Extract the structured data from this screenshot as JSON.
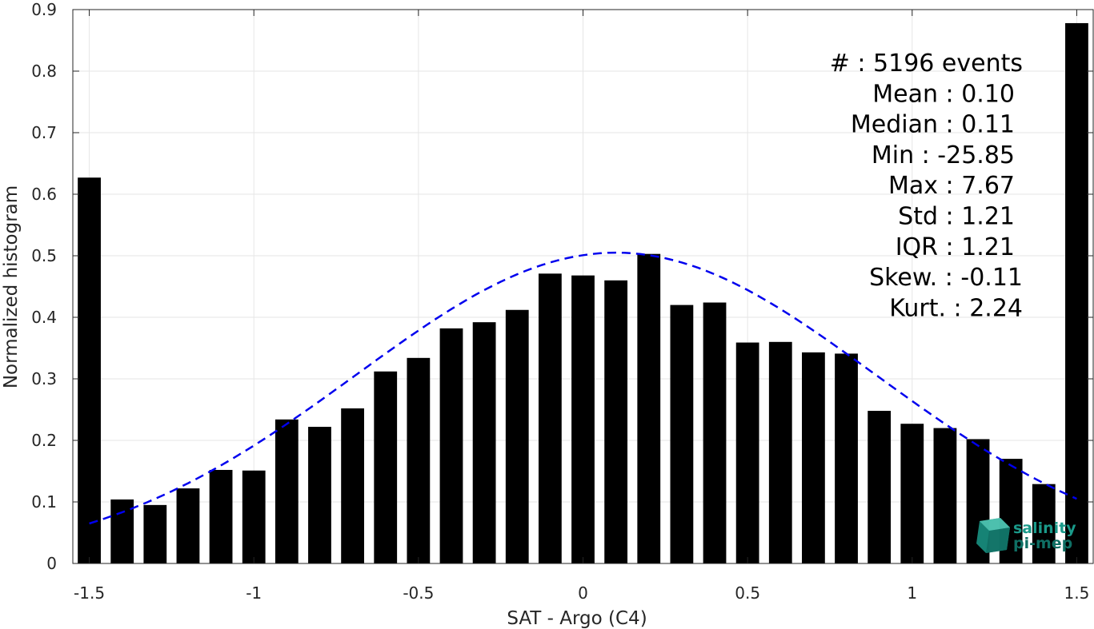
{
  "chart_data": {
    "type": "bar",
    "title": "",
    "xlabel": "SAT - Argo (C4)",
    "ylabel": "Normalized histogram",
    "xlim": [
      -1.55,
      1.55
    ],
    "ylim": [
      0,
      0.9
    ],
    "grid": true,
    "x_ticks": [
      {
        "value": -1.5,
        "label": "-1.5"
      },
      {
        "value": -1,
        "label": "-1"
      },
      {
        "value": -0.5,
        "label": "-0.5"
      },
      {
        "value": 0,
        "label": "0"
      },
      {
        "value": 0.5,
        "label": "0.5"
      },
      {
        "value": 1,
        "label": "1"
      },
      {
        "value": 1.5,
        "label": "1.5"
      }
    ],
    "y_ticks": [
      {
        "value": 0,
        "label": "0"
      },
      {
        "value": 0.1,
        "label": "0.1"
      },
      {
        "value": 0.2,
        "label": "0.2"
      },
      {
        "value": 0.3,
        "label": "0.3"
      },
      {
        "value": 0.4,
        "label": "0.4"
      },
      {
        "value": 0.5,
        "label": "0.5"
      },
      {
        "value": 0.6,
        "label": "0.6"
      },
      {
        "value": 0.7,
        "label": "0.7"
      },
      {
        "value": 0.8,
        "label": "0.8"
      },
      {
        "value": 0.9,
        "label": "0.9"
      }
    ],
    "bars": {
      "color": "#000000",
      "x": [
        -1.5,
        -1.4,
        -1.3,
        -1.2,
        -1.1,
        -1.0,
        -0.9,
        -0.8,
        -0.7,
        -0.6,
        -0.5,
        -0.4,
        -0.3,
        -0.2,
        -0.1,
        0.0,
        0.1,
        0.2,
        0.3,
        0.4,
        0.5,
        0.6,
        0.7,
        0.8,
        0.9,
        1.0,
        1.1,
        1.2,
        1.3,
        1.4,
        1.5
      ],
      "values": [
        0.627,
        0.104,
        0.095,
        0.122,
        0.152,
        0.151,
        0.234,
        0.222,
        0.252,
        0.312,
        0.334,
        0.382,
        0.392,
        0.412,
        0.471,
        0.468,
        0.46,
        0.503,
        0.42,
        0.424,
        0.359,
        0.36,
        0.343,
        0.341,
        0.248,
        0.227,
        0.22,
        0.202,
        0.17,
        0.129,
        0.878
      ]
    },
    "gaussian_fit": {
      "style": "dashed",
      "color": "#0000ee",
      "mean": 0.1,
      "std": 0.79,
      "peak": 0.505,
      "x_range": [
        -1.5,
        1.5
      ]
    },
    "annotations": [
      "#  : 5196 events",
      "Mean : 0.10",
      "Median : 0.11",
      "Min : -25.85",
      "Max : 7.67",
      "Std : 1.21",
      "IQR : 1.21",
      "Skew. : -0.11",
      "Kurt. : 2.24"
    ]
  },
  "logo": {
    "line1": "salinity",
    "line2": "pi-mep",
    "color": "#1a9a8a"
  }
}
